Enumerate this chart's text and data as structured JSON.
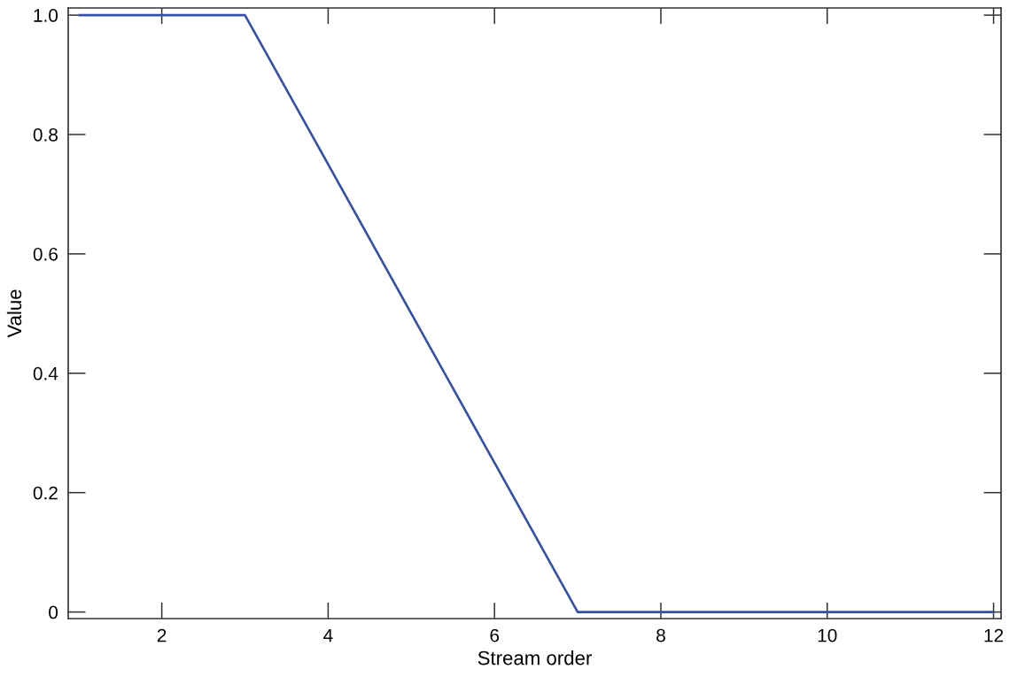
{
  "chart_data": {
    "type": "line",
    "xlabel": "Stream order",
    "ylabel": "Value",
    "x": [
      1,
      2,
      3,
      4,
      5,
      6,
      7,
      8,
      9,
      10,
      11,
      12
    ],
    "series": [
      {
        "color": "#3550a8",
        "values": [
          1,
          1,
          1,
          0.75,
          0.5,
          0.25,
          0,
          0,
          0,
          0,
          0,
          0
        ]
      }
    ],
    "line_style": "solid",
    "xlim": [
      0.875,
      12.09
    ],
    "ylim": [
      -0.011,
      1.012
    ],
    "xticks": [
      2,
      4,
      6,
      8,
      10,
      12
    ],
    "yticks": [
      0,
      0.2,
      0.4,
      0.6,
      0.8,
      {
        "value": 1,
        "label": "1.0"
      }
    ]
  }
}
